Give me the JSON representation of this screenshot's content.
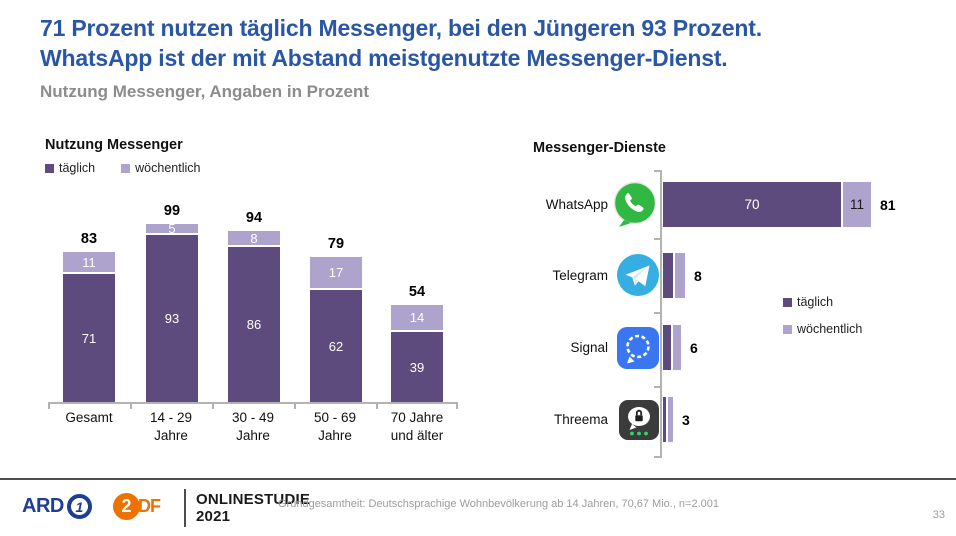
{
  "header": {
    "title_line1": "71 Prozent nutzen täglich Messenger, bei den Jüngeren 93 Prozent.",
    "title_line2": "WhatsApp ist der mit Abstand meistgenutzte Messenger-Dienst.",
    "subtitle": "Nutzung Messenger, Angaben in Prozent"
  },
  "colors": {
    "title_blue": "#2a57a5",
    "subtitle_gray": "#8c8c8c",
    "daily_purple": "#5e4b7e",
    "weekly_purple": "#aea3cc",
    "axis_gray": "#b3b3b3",
    "note_gray": "#9c9c9c",
    "ard_blue": "#1d3e92",
    "zdf_orange": "#ee7203",
    "whatsapp_green": "#30b843",
    "telegram_blue": "#37aee2",
    "signal_blue": "#3a76f0",
    "threema_dark": "#3b3b3b",
    "threema_dot_green": "#35d46a"
  },
  "chart_data": [
    {
      "type": "bar",
      "variant": "stacked-vertical",
      "title": "Nutzung Messenger",
      "unit": "Prozent",
      "ylim": [
        0,
        100
      ],
      "grid": false,
      "legend": [
        "täglich",
        "wöchentlich"
      ],
      "legend_position": "top-left",
      "categories": [
        "Gesamt",
        "14 - 29 Jahre",
        "30 - 49 Jahre",
        "50 - 69 Jahre",
        "70 Jahre und älter"
      ],
      "category_lines": [
        [
          "Gesamt",
          ""
        ],
        [
          "14 - 29",
          "Jahre"
        ],
        [
          "30 - 49",
          "Jahre"
        ],
        [
          "50 - 69",
          "Jahre"
        ],
        [
          "70 Jahre",
          "und älter"
        ]
      ],
      "series": [
        {
          "name": "täglich",
          "values": [
            71,
            93,
            86,
            62,
            39
          ]
        },
        {
          "name": "wöchentlich",
          "values": [
            11,
            5,
            8,
            17,
            14
          ]
        }
      ],
      "totals": [
        83,
        99,
        94,
        79,
        54
      ]
    },
    {
      "type": "bar",
      "variant": "stacked-horizontal",
      "title": "Messenger-Dienste",
      "unit": "Prozent",
      "xlim": [
        0,
        100
      ],
      "grid": false,
      "legend": [
        "täglich",
        "wöchentlich"
      ],
      "legend_position": "right",
      "categories": [
        "WhatsApp",
        "Telegram",
        "Signal",
        "Threema"
      ],
      "series": [
        {
          "name": "täglich",
          "values": [
            70,
            4,
            3,
            1
          ]
        },
        {
          "name": "wöchentlich",
          "values": [
            11,
            4,
            3,
            2
          ]
        }
      ],
      "totals": [
        81,
        8,
        6,
        3
      ],
      "segment_labels_shown_for": [
        "WhatsApp"
      ],
      "icons": [
        "whatsapp-icon",
        "telegram-icon",
        "signal-icon",
        "threema-icon"
      ]
    }
  ],
  "footer": {
    "ard_label": "ARD",
    "ard_one": "1",
    "zdf_two": "2",
    "zdf_df": "DF",
    "study_line1": "ONLINESTUDIE",
    "study_line2": "2021",
    "note": "Grundgesamtheit: Deutschsprachige Wohnbevölkerung ab 14 Jahren, 70,67 Mio., n=2.001",
    "page_number": "33"
  }
}
